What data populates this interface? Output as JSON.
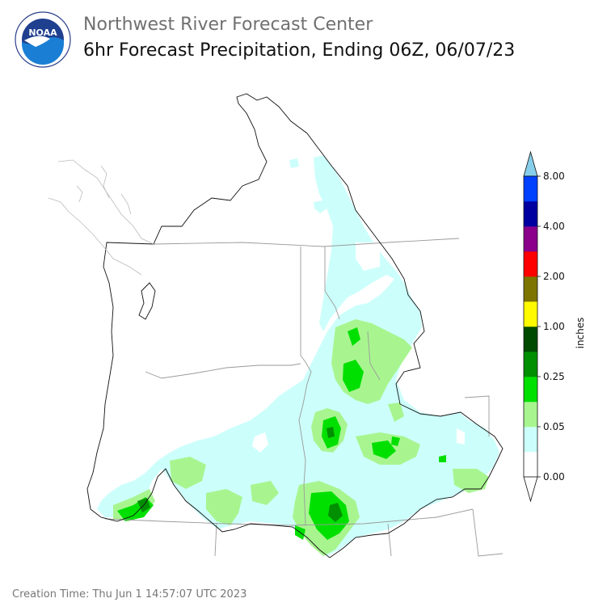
{
  "header": {
    "title": "Northwest River Forecast Center",
    "subtitle": "6hr Forecast Precipitation, Ending 06Z, 06/07/23"
  },
  "logo": {
    "text": "NOAA",
    "ring_text": "NATIONAL OCEANIC AND ATMOSPHERIC ADMINISTRATION · U.S. DEPARTMENT OF COMMERCE"
  },
  "colorbar": {
    "unit": "inches",
    "bins": [
      {
        "color": "#ffffff"
      },
      {
        "color": "#ccfffb"
      },
      {
        "color": "#a8f590"
      },
      {
        "color": "#00e000"
      },
      {
        "color": "#008f00"
      },
      {
        "color": "#004a00"
      },
      {
        "color": "#fffa00"
      },
      {
        "color": "#7d7400"
      },
      {
        "color": "#ff0000"
      },
      {
        "color": "#8a008a"
      },
      {
        "color": "#0000a0"
      },
      {
        "color": "#0040ff"
      }
    ],
    "top_arrow_color": "#87ceeb",
    "bottom_arrow_color": "#ffffff",
    "tick_labels": [
      "0.00",
      "0.05",
      "0.25",
      "1.00",
      "2.00",
      "4.00",
      "8.00"
    ]
  },
  "footer": {
    "creation_time": "Creation Time: Thu Jun 1 14:57:07 UTC 2023"
  }
}
